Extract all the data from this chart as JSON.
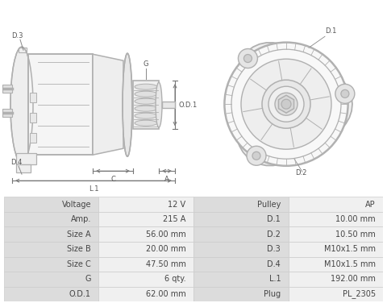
{
  "table_rows": [
    [
      "Voltage",
      "12 V",
      "Pulley",
      "AP"
    ],
    [
      "Amp.",
      "215 A",
      "D.1",
      "10.00 mm"
    ],
    [
      "Size A",
      "56.00 mm",
      "D.2",
      "10.50 mm"
    ],
    [
      "Size B",
      "20.00 mm",
      "D.3",
      "M10x1.5 mm"
    ],
    [
      "Size C",
      "47.50 mm",
      "D.4",
      "M10x1.5 mm"
    ],
    [
      "G",
      "6 qty.",
      "L.1",
      "192.00 mm"
    ],
    [
      "O.D.1",
      "62.00 mm",
      "Plug",
      "PL_2305"
    ]
  ],
  "bg_color": "#ffffff",
  "table_label_bg": "#dcdcdc",
  "table_value_bg": "#f0f0f0",
  "table_border": "#cccccc",
  "dc": "#b0b0b0",
  "lc": "#888888",
  "lbc": "#555555",
  "dim_color": "#777777"
}
